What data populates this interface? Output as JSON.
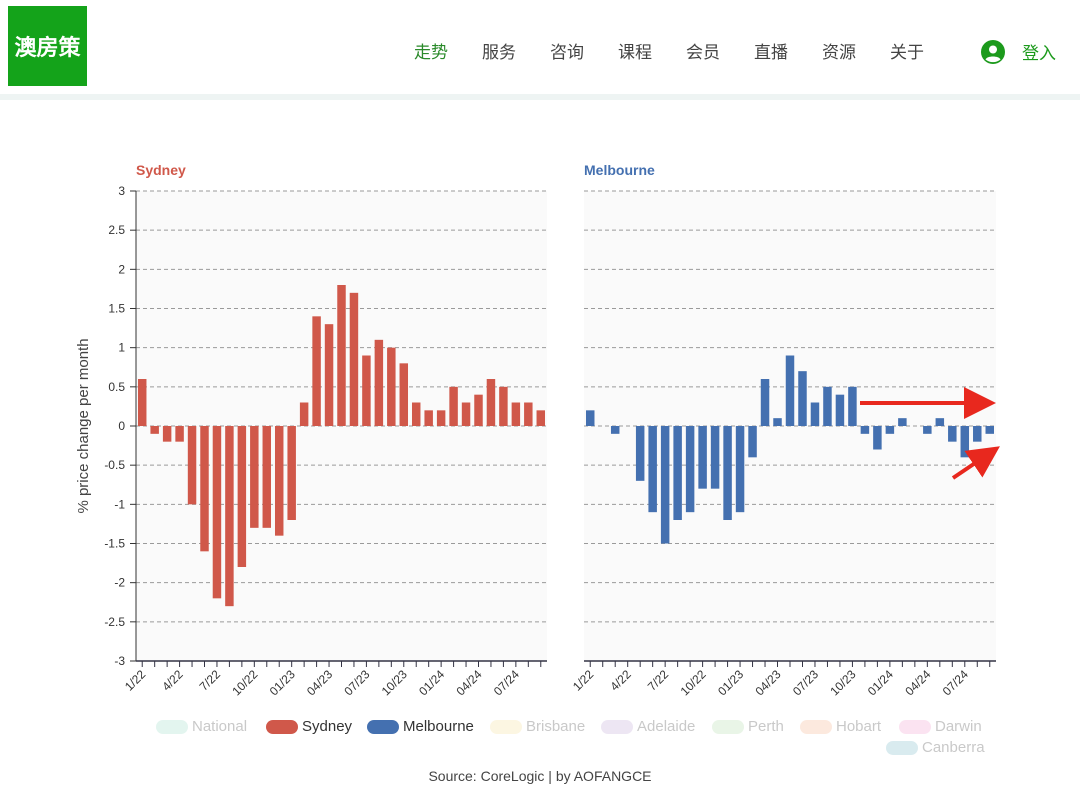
{
  "header": {
    "logo_text": "澳房策",
    "nav": [
      {
        "label": "走势",
        "active": true
      },
      {
        "label": "服务",
        "active": false
      },
      {
        "label": "咨询",
        "active": false
      },
      {
        "label": "课程",
        "active": false
      },
      {
        "label": "会员",
        "active": false
      },
      {
        "label": "直播",
        "active": false
      },
      {
        "label": "资源",
        "active": false
      },
      {
        "label": "关于",
        "active": false
      }
    ],
    "login_label": "登入",
    "accent_color": "#14a31a"
  },
  "chart_data": {
    "type": "bar",
    "ylabel": "% price change per month",
    "ylim": [
      -3,
      3
    ],
    "yticks": [
      3,
      2.5,
      2,
      1.5,
      1,
      0.5,
      0,
      -0.5,
      -1,
      -1.5,
      -2,
      -2.5,
      -3
    ],
    "grid": "horizontal dashed",
    "x_tick_labels": [
      "1/22",
      "4/22",
      "7/22",
      "10/22",
      "01/23",
      "04/23",
      "07/23",
      "10/23",
      "01/24",
      "04/24",
      "07/24"
    ],
    "panels": [
      {
        "name": "Sydney",
        "color": "#d0584a",
        "values": [
          0.6,
          -0.1,
          -0.2,
          -0.2,
          -1.0,
          -1.6,
          -2.2,
          -2.3,
          -1.8,
          -1.3,
          -1.3,
          -1.4,
          -1.2,
          0.3,
          1.4,
          1.3,
          1.8,
          1.7,
          0.9,
          1.1,
          1.0,
          0.8,
          0.3,
          0.2,
          0.2,
          0.5,
          0.3,
          0.4,
          0.6,
          0.5,
          0.3,
          0.3,
          0.2
        ]
      },
      {
        "name": "Melbourne",
        "color": "#4470b0",
        "values": [
          0.2,
          0.0,
          -0.1,
          0.0,
          -0.7,
          -1.1,
          -1.5,
          -1.2,
          -1.1,
          -0.8,
          -0.8,
          -1.2,
          -1.1,
          -0.4,
          0.6,
          0.1,
          0.9,
          0.7,
          0.3,
          0.5,
          0.4,
          0.5,
          -0.1,
          -0.3,
          -0.1,
          0.1,
          0.0,
          -0.1,
          0.1,
          -0.2,
          -0.4,
          -0.2,
          -0.1
        ]
      }
    ],
    "legend": {
      "placement": "bottom",
      "items": [
        {
          "label": "National",
          "color": "#8fd6c0",
          "active": false
        },
        {
          "label": "Sydney",
          "color": "#d0584a",
          "active": true
        },
        {
          "label": "Melbourne",
          "color": "#4470b0",
          "active": true
        },
        {
          "label": "Brisbane",
          "color": "#f5dc8a",
          "active": false
        },
        {
          "label": "Adelaide",
          "color": "#b89ad0",
          "active": false
        },
        {
          "label": "Perth",
          "color": "#a8d9a0",
          "active": false
        },
        {
          "label": "Hobart",
          "color": "#f4a67a",
          "active": false
        },
        {
          "label": "Darwin",
          "color": "#ee8fc7",
          "active": false
        },
        {
          "label": "Canberra",
          "color": "#68aebf",
          "active": false
        }
      ]
    },
    "annotation_color": "#e8281e",
    "source": "Source: CoreLogic | by AOFANGCE"
  }
}
